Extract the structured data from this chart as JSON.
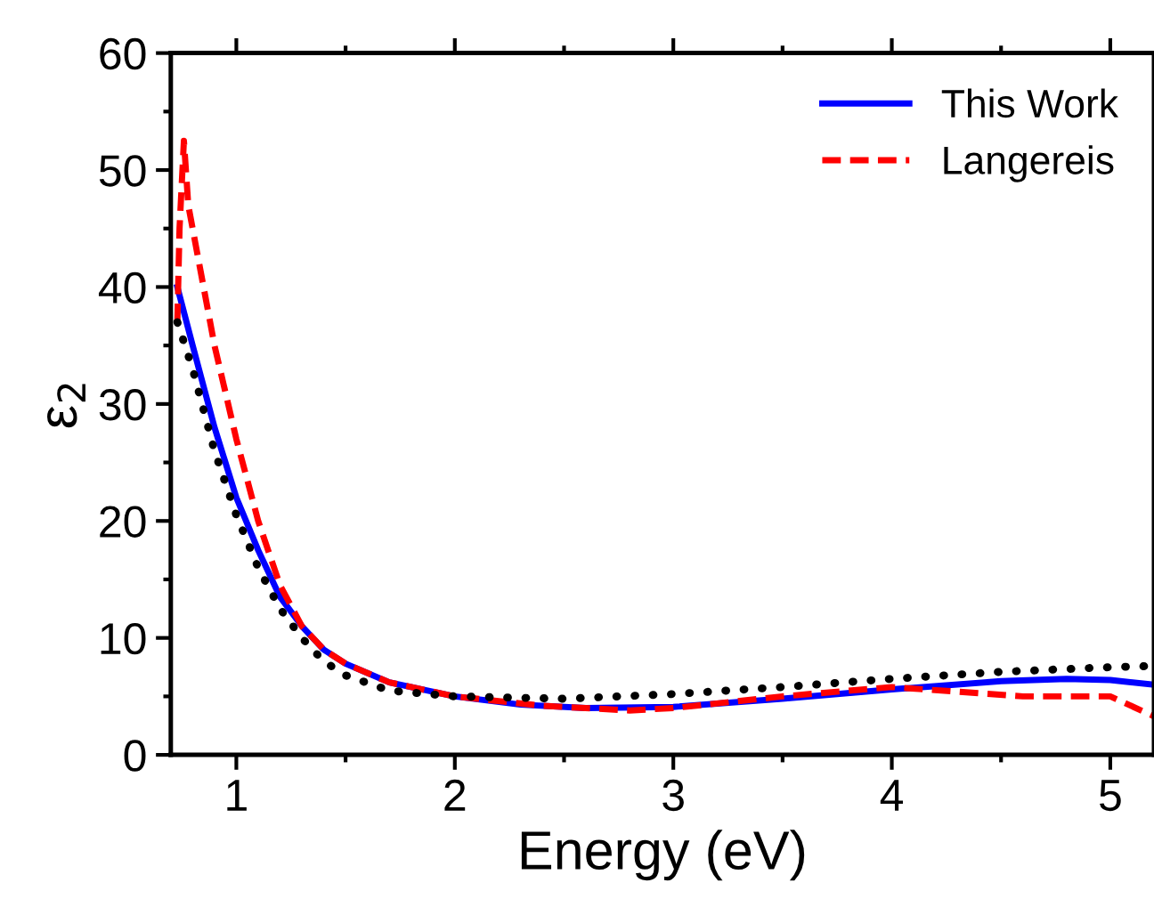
{
  "chart_data": {
    "type": "line",
    "xlabel": "Energy (eV)",
    "ylabel": "ε$_{2}$",
    "xlim": [
      0.7,
      5.2
    ],
    "xticks": [
      1,
      2,
      3,
      4,
      5
    ],
    "ylim": [
      0,
      60
    ],
    "yticks": [
      0,
      10,
      20,
      30,
      40,
      50,
      60
    ],
    "grid": false,
    "legend": "top right",
    "series": [
      {
        "name": "This Work",
        "color": "#0000ff",
        "line_style": "solid",
        "x": [
          0.73,
          0.8,
          0.9,
          1.0,
          1.1,
          1.2,
          1.3,
          1.4,
          1.5,
          1.7,
          2.0,
          2.3,
          2.6,
          3.0,
          3.5,
          4.0,
          4.5,
          4.8,
          5.0,
          5.2
        ],
        "values": [
          40,
          35,
          28,
          22,
          17.5,
          13.5,
          11,
          9,
          7.8,
          6.2,
          5,
          4.3,
          4,
          4.1,
          4.8,
          5.6,
          6.3,
          6.5,
          6.4,
          6.0
        ]
      },
      {
        "name": "Langereis",
        "color": "#ff0000",
        "line_style": "dashed",
        "x": [
          0.73,
          0.74,
          0.76,
          0.78,
          0.82,
          0.9,
          1.0,
          1.1,
          1.2,
          1.3,
          1.4,
          1.5,
          1.7,
          2.0,
          2.4,
          2.8,
          3.0,
          3.5,
          4.0,
          4.3,
          4.6,
          5.0,
          5.2
        ],
        "values": [
          37,
          45,
          52.5,
          47,
          43,
          35,
          27,
          20,
          14.5,
          11,
          9,
          7.8,
          6.2,
          5,
          4.2,
          3.8,
          4,
          5,
          5.8,
          5.4,
          5,
          5,
          3.3
        ]
      },
      {
        "color": "#000000",
        "line_style": "dotted",
        "x": [
          0.73,
          0.8,
          0.9,
          1.0,
          1.1,
          1.2,
          1.3,
          1.4,
          1.5,
          1.7,
          2.0,
          2.5,
          3.0,
          3.5,
          4.0,
          4.5,
          5.0,
          5.2
        ],
        "values": [
          37,
          33,
          26,
          20.5,
          16,
          12.5,
          10,
          8,
          6.8,
          5.5,
          5,
          4.8,
          5.2,
          5.8,
          6.5,
          7.1,
          7.5,
          7.6
        ]
      }
    ]
  }
}
